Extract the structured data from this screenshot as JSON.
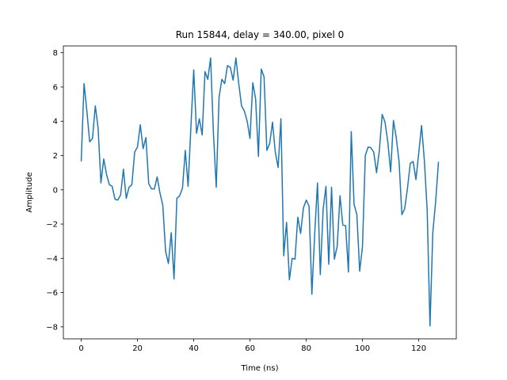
{
  "chart_data": {
    "type": "line",
    "title": "Run 15844, delay = 340.00, pixel 0",
    "xlabel": "Time (ns)",
    "ylabel": "Amplitude",
    "xlim": [
      -6.35,
      133.35
    ],
    "ylim": [
      -8.7,
      8.4
    ],
    "xticks": [
      0,
      20,
      40,
      60,
      80,
      100,
      120
    ],
    "yticks": [
      -8,
      -6,
      -4,
      -2,
      0,
      2,
      4,
      6,
      8
    ],
    "grid": false,
    "line_color": "#1f77b4",
    "series": [
      {
        "x": [
          0,
          1,
          2,
          3,
          4,
          5,
          6,
          7,
          8,
          9,
          10,
          11,
          12,
          13,
          14,
          15,
          16,
          17,
          18,
          19,
          20,
          21,
          22,
          23,
          24,
          25,
          26,
          27,
          28,
          29,
          30,
          31,
          32,
          33,
          34,
          35,
          36,
          37,
          38,
          39,
          40,
          41,
          42,
          43,
          44,
          45,
          46,
          47,
          48,
          49,
          50,
          51,
          52,
          53,
          54,
          55,
          56,
          57,
          58,
          59,
          60,
          61,
          62,
          63,
          64,
          65,
          66,
          67,
          68,
          69,
          70,
          71,
          72,
          73,
          74,
          75,
          76,
          77,
          78,
          79,
          80,
          81,
          82,
          83,
          84,
          85,
          86,
          87,
          88,
          89,
          90,
          91,
          92,
          93,
          94,
          95,
          96,
          97,
          98,
          99,
          100,
          101,
          102,
          103,
          104,
          105,
          106,
          107,
          108,
          109,
          110,
          111,
          112,
          113,
          114,
          115,
          116,
          117,
          118,
          119,
          120,
          121,
          122,
          123,
          124,
          125,
          126,
          127
        ],
        "values": [
          1.7,
          6.2,
          4.6,
          2.8,
          3.0,
          4.9,
          3.6,
          0.4,
          1.8,
          0.9,
          0.3,
          0.2,
          -0.55,
          -0.6,
          -0.3,
          1.2,
          -0.5,
          0.15,
          0.3,
          2.2,
          2.5,
          3.8,
          2.4,
          3.05,
          0.35,
          0.05,
          0.05,
          0.75,
          -0.2,
          -0.9,
          -3.6,
          -4.3,
          -2.5,
          -5.2,
          -0.5,
          -0.35,
          0.1,
          2.3,
          0.2,
          3.7,
          7.0,
          3.3,
          4.15,
          3.2,
          6.9,
          6.45,
          7.7,
          3.3,
          0.15,
          5.4,
          6.45,
          6.2,
          7.25,
          7.15,
          6.4,
          7.7,
          6.2,
          4.9,
          4.6,
          4.0,
          3.0,
          6.25,
          5.3,
          1.95,
          7.05,
          6.6,
          2.3,
          2.7,
          3.95,
          2.2,
          1.3,
          4.15,
          -3.85,
          -1.9,
          -5.25,
          -4.0,
          -4.05,
          -1.6,
          -2.55,
          -1.05,
          -0.6,
          -0.95,
          -6.1,
          -2.6,
          0.4,
          -4.95,
          -1.15,
          0.2,
          -4.35,
          0.15,
          -4.05,
          -3.3,
          -0.35,
          -2.05,
          -2.1,
          -4.8,
          3.4,
          -0.85,
          -1.45,
          -4.75,
          -3.3,
          2.0,
          2.5,
          2.45,
          2.2,
          1.0,
          2.3,
          4.4,
          3.95,
          2.8,
          1.05,
          4.05,
          3.05,
          1.65,
          -1.45,
          -1.1,
          0.1,
          1.55,
          1.65,
          0.6,
          2.15,
          3.75,
          1.7,
          -1.2,
          -7.95,
          -2.5,
          -0.7,
          1.6
        ]
      }
    ]
  }
}
